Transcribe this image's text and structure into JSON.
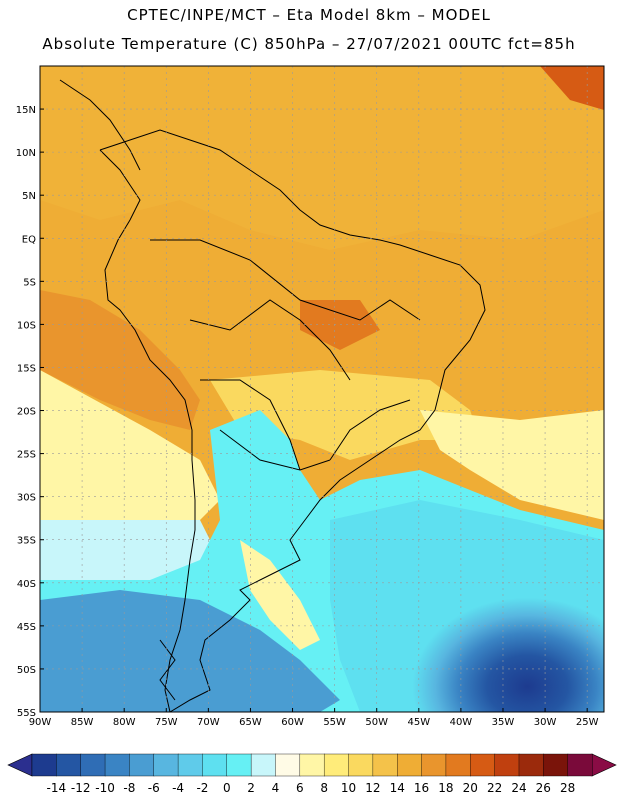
{
  "header": {
    "line1": "CPTEC/INPE/MCT –  Eta Model 8km – MODEL",
    "line2": "Absolute Temperature (C) 850hPa – 27/07/2021 00UTC fct=85h"
  },
  "map": {
    "lat_labels": [
      "15N",
      "10N",
      "5N",
      "EQ",
      "5S",
      "10S",
      "15S",
      "20S",
      "25S",
      "30S",
      "35S",
      "40S",
      "45S",
      "50S",
      "55S"
    ],
    "lon_labels": [
      "90W",
      "85W",
      "80W",
      "75W",
      "70W",
      "65W",
      "60W",
      "55W",
      "50W",
      "45W",
      "40W",
      "35W",
      "30W",
      "25W"
    ],
    "lat_values": [
      15,
      10,
      5,
      0,
      -5,
      -10,
      -15,
      -20,
      -25,
      -30,
      -35,
      -40,
      -45,
      -50,
      -55
    ],
    "lon_values": [
      -90,
      -85,
      -80,
      -75,
      -70,
      -65,
      -60,
      -55,
      -50,
      -45,
      -40,
      -35,
      -30,
      -25
    ],
    "lat_range": [
      -55,
      20
    ],
    "lon_range": [
      -90,
      -23
    ]
  },
  "colorbar": {
    "labels": [
      "-14",
      "-12",
      "-10",
      "-8",
      "-6",
      "-4",
      "-2",
      "0",
      "2",
      "4",
      "6",
      "8",
      "10",
      "12",
      "14",
      "16",
      "18",
      "20",
      "22",
      "24",
      "26",
      "28"
    ],
    "colors": [
      "#1d3b8f",
      "#2456a3",
      "#2f6db5",
      "#3a84c4",
      "#4a9dd2",
      "#58b6e0",
      "#5fcbea",
      "#5ee0f0",
      "#66f0f4",
      "#c8f6fa",
      "#fffbe6",
      "#fff6a6",
      "#ffec7a",
      "#fad95f",
      "#f4c24a",
      "#efad35",
      "#e9952d",
      "#e27a1f",
      "#d65b14",
      "#c0400f",
      "#9b2a0c",
      "#7a140a",
      "#7a0a3a"
    ],
    "end_colors": [
      "#2b2f8f",
      "#8a0c45"
    ]
  },
  "palette": {
    "warm_main": "#efad35",
    "warm_dark": "#e27a1f",
    "coast": "#000000"
  }
}
